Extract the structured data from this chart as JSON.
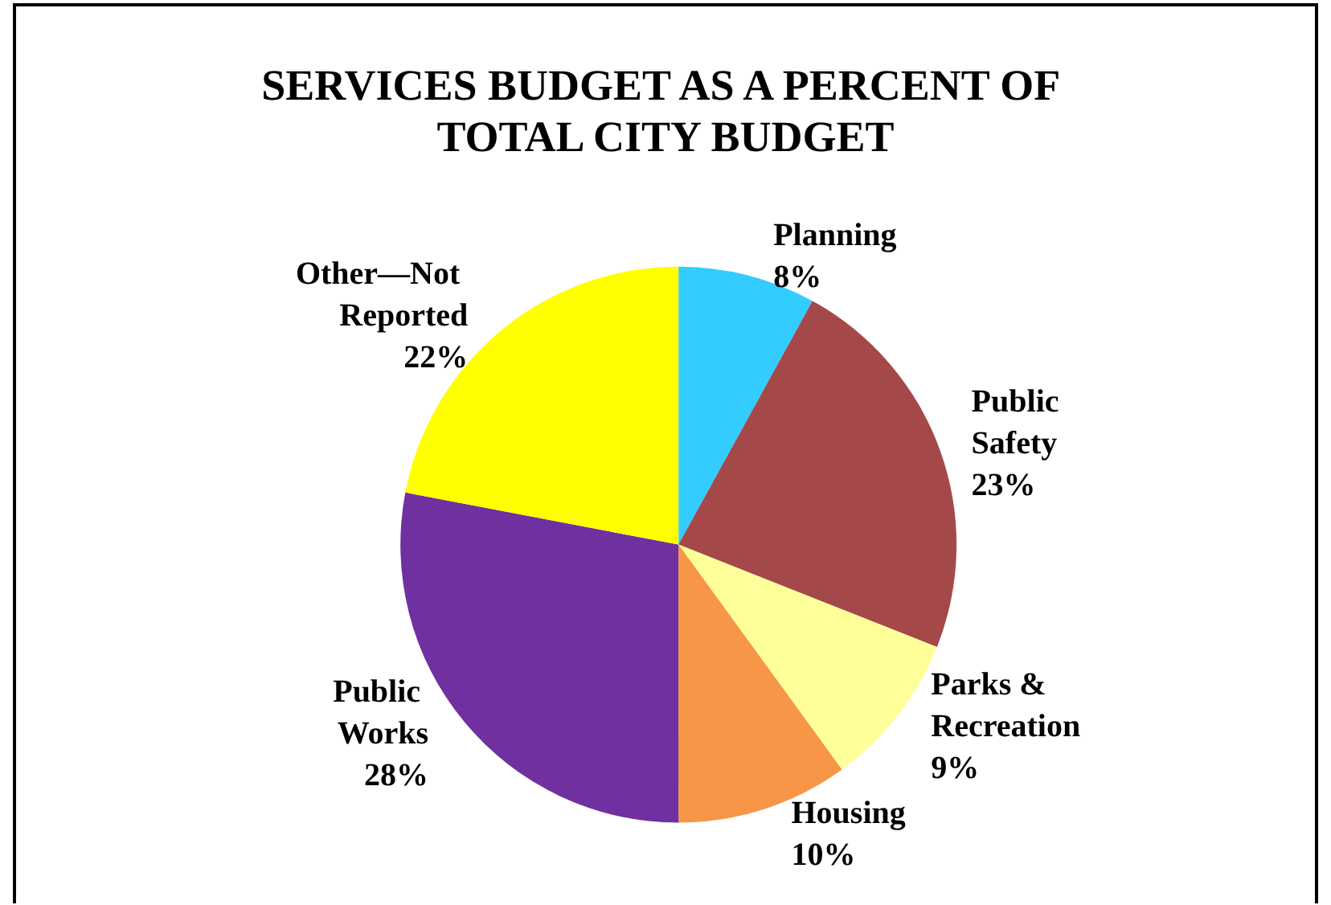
{
  "chart_data": {
    "type": "pie",
    "title": "SERVICES BUDGET AS A PERCENT OF TOTAL CITY BUDGET",
    "categories": [
      "Planning",
      "Public Safety",
      "Parks & Recreation",
      "Housing",
      "Public Works",
      "Other—Not Reported"
    ],
    "values": [
      8,
      23,
      9,
      10,
      28,
      22
    ],
    "value_labels": [
      "8%",
      "23%",
      "9%",
      "10%",
      "28%",
      "22%"
    ],
    "colors": [
      "#33ccff",
      "#a5484a",
      "#ffff99",
      "#f79646",
      "#7030a0",
      "#ffff00"
    ],
    "legend": false
  }
}
